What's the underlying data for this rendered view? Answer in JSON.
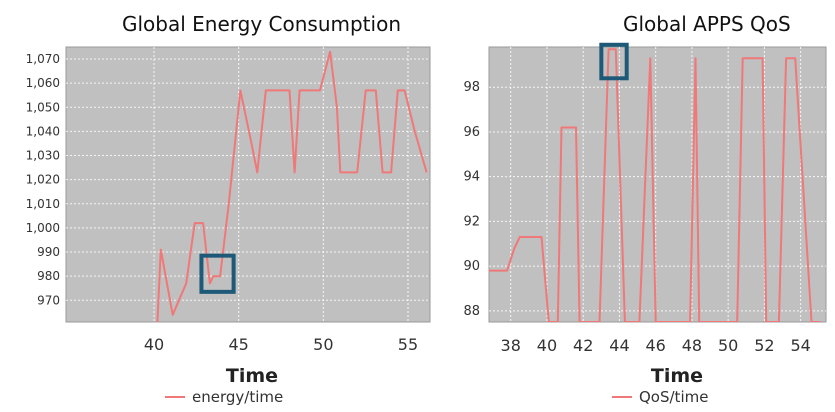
{
  "chart_data": [
    {
      "type": "line",
      "title": "Global Energy Consumption",
      "xlabel": "Time",
      "ylabel": "",
      "xlim": [
        34.8,
        56.3
      ],
      "ylim": [
        961,
        1075
      ],
      "x_ticks": [
        40,
        45,
        50,
        55
      ],
      "y_ticks": [
        970,
        980,
        990,
        1000,
        1010,
        1020,
        1030,
        1040,
        1050,
        1060,
        1070
      ],
      "y_tick_labels": [
        "970",
        "980",
        "990",
        "1,000",
        "1,010",
        "1,020",
        "1,030",
        "1,040",
        "1,050",
        "1,060",
        "1,070"
      ],
      "grid": true,
      "background": "#c0c0c0",
      "series": [
        {
          "name": "energy/time",
          "color": "#f07878",
          "x": [
            40.2,
            40.4,
            41.1,
            41.9,
            42.4,
            42.9,
            43.3,
            43.5,
            43.9,
            44.4,
            45.1,
            45.7,
            46.1,
            46.6,
            48.0,
            48.3,
            48.6,
            49.8,
            50.4,
            50.8,
            51.0,
            51.3,
            52.0,
            52.5,
            53.1,
            53.5,
            54.0,
            54.4,
            54.8,
            55.4,
            56.1
          ],
          "y": [
            961,
            991,
            964,
            977,
            1002,
            1002,
            977,
            980,
            980,
            1009,
            1057,
            1037,
            1023,
            1057,
            1057,
            1023,
            1057,
            1057,
            1073,
            1050,
            1023,
            1023,
            1023,
            1057,
            1057,
            1023,
            1023,
            1057,
            1057,
            1040,
            1023
          ]
        }
      ],
      "annotation": {
        "type": "highlight-box",
        "x": [
          42.8,
          44.7
        ],
        "y": [
          973.5,
          988.5
        ],
        "color": "#1e5a78"
      }
    },
    {
      "type": "line",
      "title": "Global APPS QoS",
      "xlabel": "Time",
      "ylabel": "",
      "xlim": [
        36.8,
        55.4
      ],
      "ylim": [
        87.5,
        99.8
      ],
      "x_ticks": [
        38,
        40,
        42,
        44,
        46,
        48,
        50,
        52,
        54
      ],
      "y_ticks": [
        88,
        90,
        92,
        94,
        96,
        98
      ],
      "y_tick_labels": [
        "88",
        "90",
        "92",
        "94",
        "96",
        "98"
      ],
      "grid": true,
      "background": "#c0c0c0",
      "series": [
        {
          "name": "QoS/time",
          "color": "#f07878",
          "x": [
            36.8,
            37.8,
            38.2,
            38.5,
            39.7,
            40.1,
            40.6,
            40.8,
            41.6,
            41.8,
            42.2,
            42.9,
            43.4,
            43.8,
            44.3,
            45.1,
            45.7,
            46.0,
            46.8,
            47.9,
            48.2,
            48.4,
            50.5,
            50.8,
            51.9,
            52.1,
            52.8,
            53.2,
            53.7,
            54.6,
            55.1
          ],
          "y": [
            89.8,
            89.8,
            90.8,
            91.3,
            91.3,
            87.5,
            87.5,
            96.2,
            96.2,
            87.5,
            87.5,
            87.5,
            99.7,
            99.7,
            87.5,
            87.5,
            99.3,
            87.5,
            87.5,
            87.5,
            99.3,
            87.5,
            87.5,
            99.3,
            99.3,
            87.5,
            87.5,
            99.3,
            99.3,
            87.5,
            87.5
          ]
        }
      ],
      "annotation": {
        "type": "highlight-box",
        "x": [
          43.0,
          44.4
        ],
        "y": [
          98.4,
          99.9
        ],
        "color": "#1e5a78"
      }
    }
  ]
}
